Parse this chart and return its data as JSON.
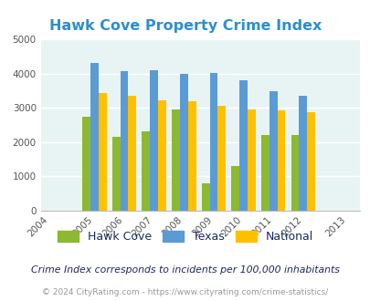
{
  "title": "Hawk Cove Property Crime Index",
  "years": [
    2004,
    2005,
    2006,
    2007,
    2008,
    2009,
    2010,
    2011,
    2012,
    2013
  ],
  "data_years": [
    2005,
    2006,
    2007,
    2008,
    2009,
    2010,
    2011,
    2012
  ],
  "hawk_cove": [
    2750,
    2150,
    2300,
    2950,
    800,
    1300,
    2200,
    2200
  ],
  "texas": [
    4300,
    4075,
    4100,
    4000,
    4025,
    3800,
    3475,
    3350
  ],
  "national": [
    3425,
    3350,
    3225,
    3200,
    3050,
    2950,
    2925,
    2875
  ],
  "hawk_cove_color": "#8db832",
  "texas_color": "#5b9bd5",
  "national_color": "#ffc000",
  "bg_color": "#e8f4f4",
  "title_color": "#2b8fd0",
  "ylim": [
    0,
    5000
  ],
  "yticks": [
    0,
    1000,
    2000,
    3000,
    4000,
    5000
  ],
  "footnote1": "Crime Index corresponds to incidents per 100,000 inhabitants",
  "footnote2": "© 2024 CityRating.com - https://www.cityrating.com/crime-statistics/",
  "footnote1_color": "#1a2a5e",
  "footnote2_color": "#999999",
  "legend_labels": [
    "Hawk Cove",
    "Texas",
    "National"
  ],
  "legend_text_color": "#1a2a5e",
  "bar_width": 0.27
}
